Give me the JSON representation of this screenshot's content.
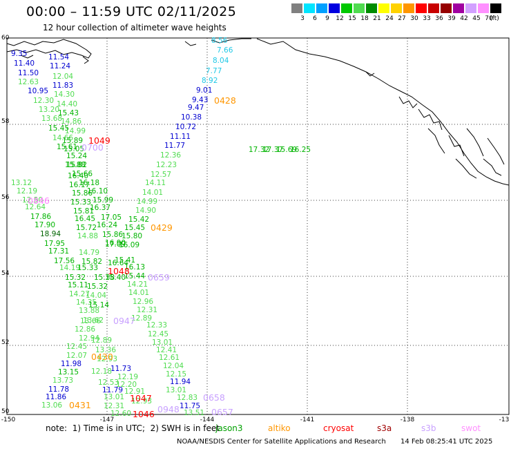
{
  "header": {
    "title": "00:00 – 11:59 UTC 02/11/2025",
    "subtitle": "12 hour collection of altimeter wave heights"
  },
  "legend": {
    "unit": "(ft)",
    "bins": [
      {
        "label": "3",
        "color": "#808080"
      },
      {
        "label": "6",
        "color": "#00e5ff"
      },
      {
        "label": "9",
        "color": "#00a0ff"
      },
      {
        "label": "12",
        "color": "#0000e0"
      },
      {
        "label": "15",
        "color": "#00c800"
      },
      {
        "label": "18",
        "color": "#50dc50"
      },
      {
        "label": "21",
        "color": "#008c00"
      },
      {
        "label": "24",
        "color": "#ffff00"
      },
      {
        "label": "27",
        "color": "#ffd200"
      },
      {
        "label": "30",
        "color": "#ff9600"
      },
      {
        "label": "33",
        "color": "#ff0000"
      },
      {
        "label": "36",
        "color": "#c80000"
      },
      {
        "label": "39",
        "color": "#960000"
      },
      {
        "label": "42",
        "color": "#a000a0"
      },
      {
        "label": "45",
        "color": "#d2a0ff"
      },
      {
        "label": "70",
        "color": "#ff90ff"
      },
      {
        "label": "",
        "color": "#000000"
      }
    ]
  },
  "axes": {
    "lon_labels": [
      "-150",
      "-147",
      "-144",
      "-141",
      "-138",
      "-13"
    ],
    "lat_labels": [
      "60",
      "58",
      "56",
      "54",
      "52",
      "50"
    ]
  },
  "points": [
    {
      "t": "8.56",
      "c": "#1ec8e6"
    },
    {
      "t": "7.66",
      "c": "#1ec8e6"
    },
    {
      "t": "8.04",
      "c": "#1ec8e6"
    },
    {
      "t": "7.77",
      "c": "#1ec8e6"
    },
    {
      "t": "8.92",
      "c": "#1ec8e6"
    },
    {
      "t": "9.01",
      "c": "#0000d0"
    },
    {
      "t": "9.43",
      "c": "#0000d0"
    },
    {
      "t": "9.47",
      "c": "#0000d0"
    },
    {
      "t": "10.38",
      "c": "#0000d0"
    },
    {
      "t": "10.72",
      "c": "#0000d0"
    },
    {
      "t": "11.11",
      "c": "#0000d0"
    },
    {
      "t": "11.77",
      "c": "#0000d0"
    },
    {
      "t": "12.36",
      "c": "#50dc50"
    },
    {
      "t": "12.23",
      "c": "#50dc50"
    },
    {
      "t": "12.57",
      "c": "#50dc50"
    },
    {
      "t": "14.11",
      "c": "#50dc50"
    },
    {
      "t": "14.01",
      "c": "#50dc50"
    },
    {
      "t": "14.99",
      "c": "#50dc50"
    },
    {
      "t": "14.90",
      "c": "#50dc50"
    },
    {
      "t": "15.42",
      "c": "#00b400"
    },
    {
      "t": "15.45",
      "c": "#00b400"
    },
    {
      "t": "15.80",
      "c": "#00b400"
    },
    {
      "t": "16.09",
      "c": "#00b400"
    },
    {
      "t": "15.41",
      "c": "#00b400"
    },
    {
      "t": "15.44",
      "c": "#00b400"
    },
    {
      "t": "14.21",
      "c": "#50dc50"
    },
    {
      "t": "14.01",
      "c": "#50dc50"
    },
    {
      "t": "12.96",
      "c": "#50dc50"
    },
    {
      "t": "12.31",
      "c": "#50dc50"
    },
    {
      "t": "12.89",
      "c": "#50dc50"
    },
    {
      "t": "12.33",
      "c": "#50dc50"
    },
    {
      "t": "12.45",
      "c": "#50dc50"
    },
    {
      "t": "13.01",
      "c": "#50dc50"
    },
    {
      "t": "12.41",
      "c": "#50dc50"
    },
    {
      "t": "12.61",
      "c": "#50dc50"
    },
    {
      "t": "12.04",
      "c": "#50dc50"
    },
    {
      "t": "12.15",
      "c": "#50dc50"
    },
    {
      "t": "11.94",
      "c": "#0000d0"
    },
    {
      "t": "13.01",
      "c": "#50dc50"
    },
    {
      "t": "12.83",
      "c": "#50dc50"
    },
    {
      "t": "11.75",
      "c": "#0000d0"
    },
    {
      "t": "13.51",
      "c": "#50dc50"
    },
    {
      "t": "9.35",
      "c": "#0000d0"
    },
    {
      "t": "11.54",
      "c": "#0000d0"
    },
    {
      "t": "11.40",
      "c": "#0000d0"
    },
    {
      "t": "11.24",
      "c": "#0000d0"
    },
    {
      "t": "11.50",
      "c": "#0000d0"
    },
    {
      "t": "12.04",
      "c": "#50dc50"
    },
    {
      "t": "12.63",
      "c": "#50dc50"
    },
    {
      "t": "11.83",
      "c": "#0000d0"
    },
    {
      "t": "10.95",
      "c": "#0000d0"
    },
    {
      "t": "14.30",
      "c": "#50dc50"
    },
    {
      "t": "12.30",
      "c": "#50dc50"
    },
    {
      "t": "14.40",
      "c": "#50dc50"
    },
    {
      "t": "13.20",
      "c": "#50dc50"
    },
    {
      "t": "15.43",
      "c": "#00b400"
    },
    {
      "t": "13.68",
      "c": "#50dc50"
    },
    {
      "t": "14.86",
      "c": "#50dc50"
    },
    {
      "t": "15.45",
      "c": "#00b400"
    },
    {
      "t": "14.99",
      "c": "#50dc50"
    },
    {
      "t": "14.66",
      "c": "#50dc50"
    },
    {
      "t": "15.89",
      "c": "#00b400"
    },
    {
      "t": "15.61",
      "c": "#00b400"
    },
    {
      "t": "15.05",
      "c": "#00b400"
    },
    {
      "t": "15.24",
      "c": "#00b400"
    },
    {
      "t": "15.82",
      "c": "#00b400"
    },
    {
      "t": "15.88",
      "c": "#00b400"
    },
    {
      "t": "15.66",
      "c": "#00b400"
    },
    {
      "t": "16.40",
      "c": "#00b400"
    },
    {
      "t": "16.18",
      "c": "#00b400"
    },
    {
      "t": "16.17",
      "c": "#00b400"
    },
    {
      "t": "16.10",
      "c": "#00b400"
    },
    {
      "t": "15.86",
      "c": "#00b400"
    },
    {
      "t": "15.99",
      "c": "#00b400"
    },
    {
      "t": "15.33",
      "c": "#00b400"
    },
    {
      "t": "16.37",
      "c": "#00b400"
    },
    {
      "t": "15.81",
      "c": "#00b400"
    },
    {
      "t": "17.05",
      "c": "#00b400"
    },
    {
      "t": "16.45",
      "c": "#00b400"
    },
    {
      "t": "16.24",
      "c": "#00b400"
    },
    {
      "t": "15.72",
      "c": "#00b400"
    },
    {
      "t": "15.86",
      "c": "#00b400"
    },
    {
      "t": "14.88",
      "c": "#50dc50"
    },
    {
      "t": "17.09",
      "c": "#00b400"
    },
    {
      "t": "14.79",
      "c": "#50dc50"
    },
    {
      "t": "16.90",
      "c": "#00b400"
    },
    {
      "t": "15.82",
      "c": "#00b400"
    },
    {
      "t": "16.64",
      "c": "#00b400"
    },
    {
      "t": "15.33",
      "c": "#00b400"
    },
    {
      "t": "16.13",
      "c": "#00b400"
    },
    {
      "t": "14.19",
      "c": "#50dc50"
    },
    {
      "t": "15.40",
      "c": "#00b400"
    },
    {
      "t": "15.32",
      "c": "#00b400"
    },
    {
      "t": "15.38",
      "c": "#00b400"
    },
    {
      "t": "15.11",
      "c": "#00b400"
    },
    {
      "t": "15.32",
      "c": "#00b400"
    },
    {
      "t": "14.27",
      "c": "#50dc50"
    },
    {
      "t": "14.04",
      "c": "#50dc50"
    },
    {
      "t": "14.35",
      "c": "#50dc50"
    },
    {
      "t": "15.14",
      "c": "#00b400"
    },
    {
      "t": "13.88",
      "c": "#50dc50"
    },
    {
      "t": "13.62",
      "c": "#50dc50"
    },
    {
      "t": "13.66",
      "c": "#50dc50"
    },
    {
      "t": "12.86",
      "c": "#50dc50"
    },
    {
      "t": "12.94",
      "c": "#50dc50"
    },
    {
      "t": "12.45",
      "c": "#50dc50"
    },
    {
      "t": "12.89",
      "c": "#50dc50"
    },
    {
      "t": "12.07",
      "c": "#50dc50"
    },
    {
      "t": "13.36",
      "c": "#50dc50"
    },
    {
      "t": "11.98",
      "c": "#0000d0"
    },
    {
      "t": "12.93",
      "c": "#50dc50"
    },
    {
      "t": "11.73",
      "c": "#0000d0"
    },
    {
      "t": "13.15",
      "c": "#00b400"
    },
    {
      "t": "12.18",
      "c": "#50dc50"
    },
    {
      "t": "12.19",
      "c": "#50dc50"
    },
    {
      "t": "13.73",
      "c": "#50dc50"
    },
    {
      "t": "12.53",
      "c": "#50dc50"
    },
    {
      "t": "12.20",
      "c": "#50dc50"
    },
    {
      "t": "11.78",
      "c": "#0000d0"
    },
    {
      "t": "11.79",
      "c": "#0000d0"
    },
    {
      "t": "12.91",
      "c": "#50dc50"
    },
    {
      "t": "11.86",
      "c": "#0000d0"
    },
    {
      "t": "13.01",
      "c": "#50dc50"
    },
    {
      "t": "12.93",
      "c": "#50dc50"
    },
    {
      "t": "13.06",
      "c": "#50dc50"
    },
    {
      "t": "12.31",
      "c": "#50dc50"
    },
    {
      "t": "12.60",
      "c": "#50dc50"
    },
    {
      "t": "13.12",
      "c": "#50dc50"
    },
    {
      "t": "12.19",
      "c": "#50dc50"
    },
    {
      "t": "12.50",
      "c": "#50dc50"
    },
    {
      "t": "12.64",
      "c": "#50dc50"
    },
    {
      "t": "17.86",
      "c": "#00b400"
    },
    {
      "t": "17.90",
      "c": "#00b400"
    },
    {
      "t": "18.94",
      "c": "#006400"
    },
    {
      "t": "17.95",
      "c": "#00b400"
    },
    {
      "t": "17.31",
      "c": "#00b400"
    },
    {
      "t": "17.56",
      "c": "#00b400"
    },
    {
      "t": "17.32",
      "c": "#00b400"
    },
    {
      "t": "17.37",
      "c": "#00b400"
    },
    {
      "t": "15.69",
      "c": "#00b400"
    },
    {
      "t": "16.25",
      "c": "#00b400"
    }
  ],
  "time_labels": [
    {
      "t": "0428",
      "c": "#ff9600"
    },
    {
      "t": "1049",
      "c": "#ff0000"
    },
    {
      "t": "0700",
      "c": "#c8a0ff"
    },
    {
      "t": "0846",
      "c": "#ff80ff"
    },
    {
      "t": "0429",
      "c": "#ff9600"
    },
    {
      "t": "1048",
      "c": "#ff0000"
    },
    {
      "t": "0659",
      "c": "#c8a0ff"
    },
    {
      "t": "0947",
      "c": "#c8a0ff"
    },
    {
      "t": "0430",
      "c": "#ff9600"
    },
    {
      "t": "1047",
      "c": "#ff0000"
    },
    {
      "t": "0948",
      "c": "#c8a0ff"
    },
    {
      "t": "1046",
      "c": "#ff0000"
    },
    {
      "t": "0431",
      "c": "#ff9600"
    },
    {
      "t": "0658",
      "c": "#c8a0ff"
    },
    {
      "t": "0657",
      "c": "#c8a0ff"
    }
  ],
  "footer": {
    "note": "note:  1) Time is in UTC;  2) SWH is in feet",
    "satellites": [
      {
        "name": "jason3",
        "color": "#00a000"
      },
      {
        "name": "altiko",
        "color": "#ff9600"
      },
      {
        "name": "cryosat",
        "color": "#ff0000"
      },
      {
        "name": "s3a",
        "color": "#a00000"
      },
      {
        "name": "s3b",
        "color": "#c8a0ff"
      },
      {
        "name": "swot",
        "color": "#ff90ff"
      }
    ],
    "credit": "NOAA/NESDIS Center for Satellite Applications and Research",
    "timestamp": "14 Feb 08:25:41 UTC 2025"
  }
}
